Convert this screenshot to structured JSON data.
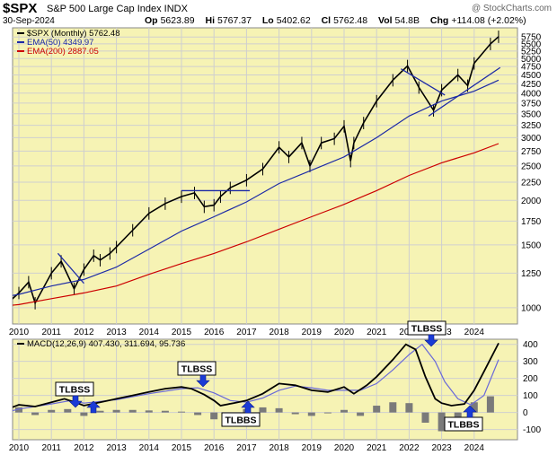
{
  "header": {
    "symbol": "$SPX",
    "description": "S&P 500 Large Cap Index  INDX",
    "date": "30-Sep-2024",
    "watermark": "@ StockCharts.com",
    "ohlc": [
      {
        "label": "Op",
        "value": "5623.89"
      },
      {
        "label": "Hi",
        "value": "5767.37"
      },
      {
        "label": "Lo",
        "value": "5402.62"
      },
      {
        "label": "Cl",
        "value": "5762.48"
      },
      {
        "label": "Vol",
        "value": "54.8B"
      },
      {
        "label": "Chg",
        "value": "+114.08 (+2.02%)"
      }
    ]
  },
  "chart_data": [
    {
      "type": "line",
      "panel": "price",
      "legend": [
        {
          "text": "$SPX (Monthly) 5762.48",
          "color": "#000000"
        },
        {
          "text": "EMA(50) 4349.97",
          "color": "#1c2aa6"
        },
        {
          "text": "EMA(200) 2887.05",
          "color": "#cc0000"
        }
      ],
      "y_ticks": [
        1000,
        1250,
        1500,
        1750,
        2000,
        2250,
        2500,
        2750,
        3000,
        3250,
        3500,
        3750,
        4000,
        4250,
        4500,
        4750,
        5000,
        5250,
        5500,
        5750
      ],
      "x_ticks": [
        "2010",
        "2011",
        "2012",
        "2013",
        "2014",
        "2015",
        "2016",
        "2017",
        "2018",
        "2019",
        "2020",
        "2021",
        "2022",
        "2023",
        "2024"
      ],
      "ylim": [
        900,
        6100
      ],
      "log_scale": true,
      "grid": true,
      "series": [
        {
          "name": "$SPX (Monthly)",
          "color": "#000000",
          "x": [
            2009.0,
            2009.5,
            2010.0,
            2010.3,
            2010.5,
            2011.0,
            2011.3,
            2011.7,
            2012.0,
            2012.3,
            2012.5,
            2012.8,
            2013.0,
            2013.5,
            2014.0,
            2014.5,
            2015.0,
            2015.4,
            2015.7,
            2016.0,
            2016.2,
            2016.5,
            2017.0,
            2017.5,
            2018.0,
            2018.3,
            2018.7,
            2018.95,
            2019.3,
            2019.7,
            2020.0,
            2020.2,
            2020.3,
            2020.6,
            2021.0,
            2021.5,
            2021.95,
            2022.3,
            2022.75,
            2023.0,
            2023.5,
            2023.8,
            2024.0,
            2024.5,
            2024.75
          ],
          "values": [
            800,
            1000,
            1100,
            1180,
            1030,
            1250,
            1350,
            1130,
            1280,
            1400,
            1360,
            1420,
            1480,
            1650,
            1840,
            1960,
            2050,
            2100,
            1920,
            1940,
            2050,
            2170,
            2280,
            2450,
            2820,
            2650,
            2900,
            2500,
            2900,
            2980,
            3230,
            2580,
            2900,
            3300,
            3800,
            4350,
            4770,
            4150,
            3580,
            4080,
            4500,
            4200,
            4850,
            5500,
            5762
          ]
        },
        {
          "name": "EMA(50)",
          "color": "#1c2aa6",
          "x": [
            2009.0,
            2010.0,
            2011.0,
            2012.0,
            2013.0,
            2014.0,
            2015.0,
            2016.0,
            2017.0,
            2018.0,
            2019.0,
            2020.0,
            2021.0,
            2022.0,
            2023.0,
            2024.0,
            2024.75
          ],
          "values": [
            1050,
            1090,
            1150,
            1200,
            1300,
            1460,
            1640,
            1800,
            1980,
            2230,
            2430,
            2650,
            3000,
            3450,
            3800,
            4050,
            4350
          ]
        },
        {
          "name": "EMA(200)",
          "color": "#cc0000",
          "x": [
            2009.0,
            2010.0,
            2011.0,
            2012.0,
            2013.0,
            2014.0,
            2015.0,
            2016.0,
            2017.0,
            2018.0,
            2019.0,
            2020.0,
            2021.0,
            2022.0,
            2023.0,
            2024.0,
            2024.75
          ],
          "values": [
            1000,
            1020,
            1060,
            1100,
            1150,
            1240,
            1330,
            1420,
            1530,
            1660,
            1800,
            1950,
            2130,
            2350,
            2550,
            2720,
            2887
          ]
        }
      ]
    },
    {
      "type": "line",
      "panel": "macd",
      "legend": [
        {
          "text": "MACD(12,26,9) 407.430, 311.694, 95.736",
          "color": "#000000"
        }
      ],
      "y_ticks": [
        -100,
        0,
        100,
        200,
        300,
        400
      ],
      "x_ticks": [
        "2010",
        "2011",
        "2012",
        "2013",
        "2014",
        "2015",
        "2016",
        "2017",
        "2018",
        "2019",
        "2020",
        "2021",
        "2022",
        "2023",
        "2024"
      ],
      "ylim": [
        -160,
        430
      ],
      "grid": true,
      "series": [
        {
          "name": "MACD",
          "color": "#000000",
          "x": [
            2009.0,
            2009.5,
            2010.0,
            2010.5,
            2011.0,
            2011.4,
            2011.8,
            2012.0,
            2012.5,
            2013.0,
            2013.5,
            2014.0,
            2014.5,
            2015.0,
            2015.3,
            2015.7,
            2016.0,
            2016.2,
            2016.6,
            2017.0,
            2017.5,
            2018.0,
            2018.5,
            2019.0,
            2019.5,
            2020.0,
            2020.3,
            2020.7,
            2021.0,
            2021.5,
            2021.9,
            2022.2,
            2022.5,
            2022.8,
            2023.0,
            2023.3,
            2023.7,
            2024.0,
            2024.3,
            2024.75
          ],
          "values": [
            -20,
            10,
            45,
            35,
            60,
            80,
            55,
            40,
            60,
            80,
            100,
            120,
            140,
            150,
            140,
            105,
            70,
            40,
            55,
            70,
            110,
            170,
            160,
            130,
            120,
            150,
            110,
            160,
            210,
            310,
            400,
            370,
            210,
            80,
            55,
            40,
            50,
            130,
            240,
            407
          ]
        },
        {
          "name": "Signal",
          "color": "#6a6ad8",
          "x": [
            2009.0,
            2010.0,
            2011.0,
            2011.6,
            2012.0,
            2013.0,
            2014.0,
            2015.0,
            2015.5,
            2016.0,
            2016.5,
            2017.0,
            2017.5,
            2018.0,
            2018.5,
            2019.0,
            2019.5,
            2020.0,
            2020.5,
            2021.0,
            2021.5,
            2022.0,
            2022.4,
            2022.8,
            2023.1,
            2023.5,
            2023.9,
            2024.3,
            2024.75
          ],
          "values": [
            -30,
            20,
            50,
            70,
            55,
            75,
            110,
            140,
            145,
            115,
            70,
            60,
            85,
            130,
            155,
            145,
            130,
            130,
            130,
            170,
            250,
            340,
            400,
            300,
            180,
            80,
            45,
            100,
            311
          ]
        },
        {
          "name": "Histogram",
          "color": "#7a7a7a",
          "x": [
            2009.5,
            2010.0,
            2010.5,
            2011.0,
            2011.5,
            2012.0,
            2012.5,
            2013.0,
            2013.5,
            2014.0,
            2014.5,
            2015.0,
            2015.5,
            2016.0,
            2016.5,
            2017.0,
            2017.5,
            2018.0,
            2018.5,
            2019.0,
            2019.5,
            2020.0,
            2020.5,
            2021.0,
            2021.5,
            2022.0,
            2022.5,
            2023.0,
            2023.5,
            2024.0,
            2024.5
          ],
          "values": [
            35,
            30,
            -15,
            15,
            20,
            -20,
            10,
            15,
            15,
            12,
            10,
            5,
            -15,
            -40,
            -25,
            20,
            30,
            25,
            -10,
            -20,
            -5,
            15,
            -20,
            40,
            60,
            55,
            -60,
            -110,
            -30,
            60,
            95
          ]
        }
      ]
    }
  ],
  "annotations": [
    {
      "text": "TLBSS",
      "kind": "sell"
    },
    {
      "text": "TLBBS",
      "kind": "buy"
    },
    {
      "text": "TLBSS",
      "kind": "sell"
    },
    {
      "text": "TLBBS",
      "kind": "buy"
    },
    {
      "text": "TLBSS",
      "kind": "sell"
    },
    {
      "text": "TLBBS",
      "kind": "buy"
    }
  ],
  "colors": {
    "panel_bg": "#f6f3b4",
    "grid": "#cfcfcf",
    "arrow": "#1a3bd6",
    "trendline": "#1c2aa6"
  }
}
